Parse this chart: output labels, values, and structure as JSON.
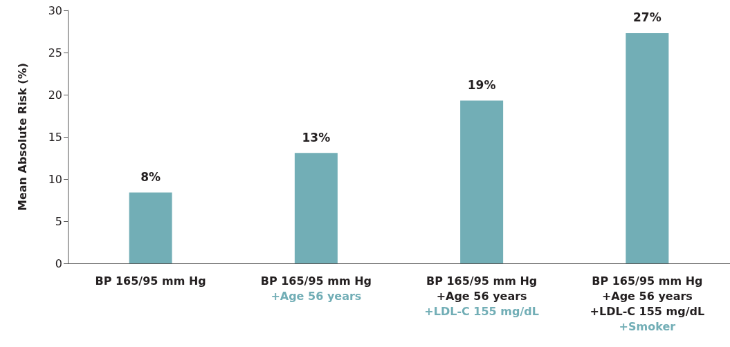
{
  "chart_data": {
    "type": "bar",
    "ylabel": "Mean Absolute Risk (%)",
    "categories": [
      "BP 165/95 mm Hg",
      "BP 165/95 mm Hg\n+Age 56 years",
      "BP 165/95 mm Hg\n+Age 56 years\n+LDL-C 155 mg/dL",
      "BP 165/95 mm Hg\n+Age 56 years\n+LDL-C 155 mg/dL\n+Smoker"
    ],
    "values": [
      8.4,
      13.1,
      19.3,
      27.3
    ],
    "value_labels": [
      "8%",
      "13%",
      "19%",
      "27%"
    ],
    "color": "#72aeb6",
    "ylim": [
      0,
      30
    ],
    "yticks": [
      0,
      5,
      10,
      15,
      20,
      25,
      30
    ],
    "grid": false
  }
}
